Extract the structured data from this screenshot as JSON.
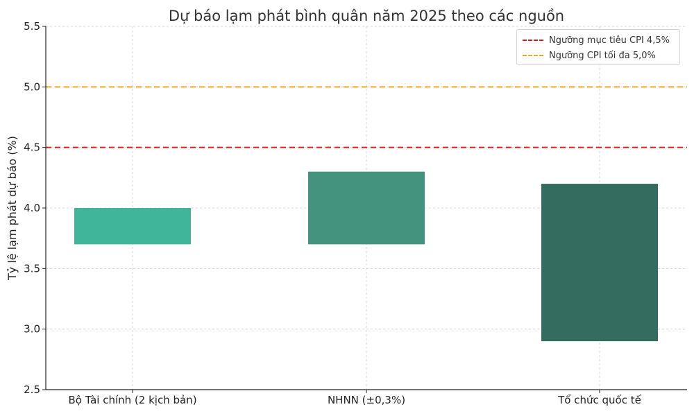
{
  "chart_data": {
    "type": "bar",
    "title": "Dự báo lạm phát bình quân năm 2025 theo các nguồn",
    "xlabel": "",
    "ylabel": "Tỷ lệ lạm phát dự báo (%)",
    "ylim": [
      2.5,
      5.5
    ],
    "yticks": [
      "2.5",
      "3.0",
      "3.5",
      "4.0",
      "4.5",
      "5.0",
      "5.5"
    ],
    "grid": true,
    "legend_position": "top-right",
    "categories": [
      "Bộ Tài chính (2 kịch bản)",
      "NHNN (±0,3%)",
      "Tổ chức quốc tế"
    ],
    "ranges": [
      {
        "low": 3.7,
        "high": 4.0,
        "color": "#40b59a"
      },
      {
        "low": 3.7,
        "high": 4.3,
        "color": "#44937f"
      },
      {
        "low": 2.9,
        "high": 4.2,
        "color": "#346c5f"
      }
    ],
    "reference_lines": [
      {
        "name": "Ngưỡng mục tiêu CPI 4,5%",
        "value": 4.5,
        "color": "#e02020"
      },
      {
        "name": "Ngưỡng CPI tối đa 5,0%",
        "value": 5.0,
        "color": "#f5a623"
      }
    ]
  }
}
